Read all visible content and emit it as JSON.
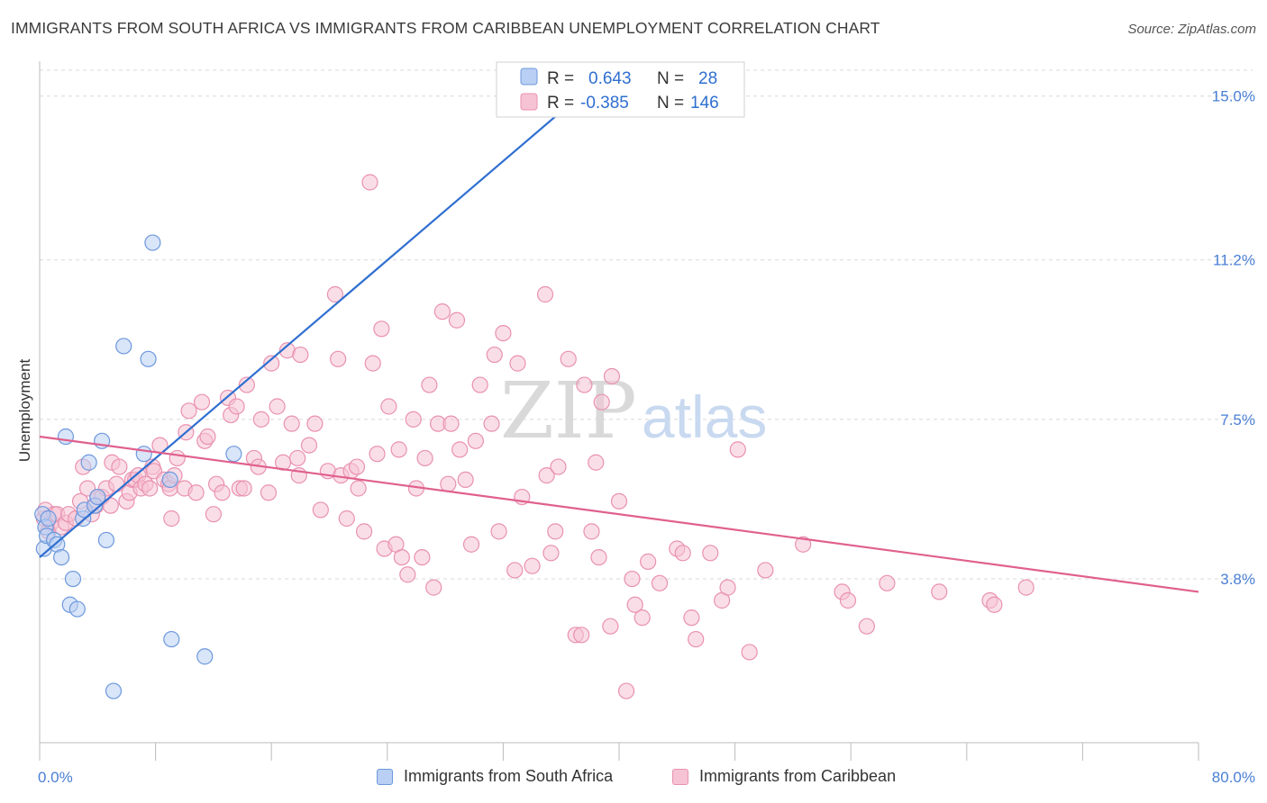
{
  "title": "IMMIGRANTS FROM SOUTH AFRICA VS IMMIGRANTS FROM CARIBBEAN UNEMPLOYMENT CORRELATION CHART",
  "source": "Source: ZipAtlas.com",
  "watermark": {
    "zip": "ZIP",
    "atlas": "atlas"
  },
  "colors": {
    "blue": "#2f6fd0",
    "blue_fill": "#b9cff3",
    "pink": "#e0608e",
    "pink_fill": "#f6c3d4",
    "grid": "#d8d8d8",
    "tick_text": "#4a7fd4"
  },
  "legend": {
    "rows": [
      {
        "r_label": "R =",
        "r_value": "0.643",
        "n_label": "N =",
        "n_value": "28"
      },
      {
        "r_label": "R =",
        "r_value": "-0.385",
        "n_label": "N =",
        "n_value": "146"
      }
    ]
  },
  "bottom_legend": [
    "Immigrants from South Africa",
    "Immigrants from Caribbean"
  ],
  "chart_data": {
    "type": "scatter",
    "title": "IMMIGRANTS FROM SOUTH AFRICA VS IMMIGRANTS FROM CARIBBEAN UNEMPLOYMENT CORRELATION CHART",
    "xlabel": "",
    "ylabel": "Unemployment",
    "xlim": [
      0,
      80
    ],
    "ylim": [
      0,
      15.6
    ],
    "x_tick_labels": [
      {
        "value": 0,
        "label": "0.0%"
      },
      {
        "value": 80,
        "label": "80.0%"
      }
    ],
    "y_tick_labels": [
      {
        "value": 3.8,
        "label": "3.8%"
      },
      {
        "value": 7.5,
        "label": "7.5%"
      },
      {
        "value": 11.2,
        "label": "11.2%"
      },
      {
        "value": 15.0,
        "label": "15.0%"
      }
    ],
    "grid": true,
    "series": [
      {
        "name": "Immigrants from South Africa",
        "color": "#2f6fd0",
        "r": 0.643,
        "n": 28,
        "trend": [
          [
            0,
            4.3
          ],
          [
            37.6,
            15.1
          ]
        ],
        "points": [
          [
            0.2,
            5.3
          ],
          [
            0.3,
            4.5
          ],
          [
            0.4,
            5.0
          ],
          [
            0.5,
            4.8
          ],
          [
            0.6,
            5.2
          ],
          [
            1.0,
            4.7
          ],
          [
            1.2,
            4.6
          ],
          [
            1.5,
            4.3
          ],
          [
            1.8,
            7.1
          ],
          [
            2.1,
            3.2
          ],
          [
            2.3,
            3.8
          ],
          [
            2.6,
            3.1
          ],
          [
            3.0,
            5.2
          ],
          [
            3.1,
            5.4
          ],
          [
            3.4,
            6.5
          ],
          [
            3.8,
            5.5
          ],
          [
            4.0,
            5.7
          ],
          [
            4.3,
            7.0
          ],
          [
            4.6,
            4.7
          ],
          [
            5.1,
            1.2
          ],
          [
            5.8,
            9.2
          ],
          [
            7.2,
            6.7
          ],
          [
            7.5,
            8.9
          ],
          [
            7.8,
            11.6
          ],
          [
            9.0,
            6.1
          ],
          [
            9.1,
            2.4
          ],
          [
            11.4,
            2.0
          ],
          [
            13.4,
            6.7
          ]
        ]
      },
      {
        "name": "Immigrants from Caribbean",
        "color": "#e0608e",
        "r": -0.385,
        "n": 146,
        "trend": [
          [
            0,
            7.1
          ],
          [
            80,
            3.5
          ]
        ],
        "points": [
          [
            0.3,
            5.2
          ],
          [
            0.4,
            5.4
          ],
          [
            0.6,
            4.9
          ],
          [
            0.8,
            5.1
          ],
          [
            1.0,
            5.3
          ],
          [
            1.2,
            5.3
          ],
          [
            1.5,
            5.0
          ],
          [
            1.8,
            5.1
          ],
          [
            2.0,
            5.3
          ],
          [
            2.5,
            5.2
          ],
          [
            2.8,
            5.6
          ],
          [
            3.0,
            6.4
          ],
          [
            3.3,
            5.9
          ],
          [
            3.6,
            5.3
          ],
          [
            3.9,
            5.5
          ],
          [
            4.0,
            5.7
          ],
          [
            4.3,
            5.7
          ],
          [
            4.6,
            5.9
          ],
          [
            4.9,
            5.5
          ],
          [
            5.0,
            6.5
          ],
          [
            5.3,
            6.0
          ],
          [
            5.5,
            6.4
          ],
          [
            6.0,
            5.6
          ],
          [
            6.2,
            5.8
          ],
          [
            6.4,
            6.1
          ],
          [
            6.6,
            6.1
          ],
          [
            6.8,
            6.2
          ],
          [
            7.0,
            5.9
          ],
          [
            7.3,
            6.0
          ],
          [
            7.6,
            5.9
          ],
          [
            7.8,
            6.4
          ],
          [
            7.9,
            6.3
          ],
          [
            8.3,
            6.9
          ],
          [
            8.6,
            6.1
          ],
          [
            8.9,
            6.0
          ],
          [
            9.0,
            5.9
          ],
          [
            9.3,
            6.2
          ],
          [
            9.5,
            6.6
          ],
          [
            9.1,
            5.2
          ],
          [
            10.0,
            5.9
          ],
          [
            10.1,
            7.2
          ],
          [
            10.3,
            7.7
          ],
          [
            10.8,
            5.8
          ],
          [
            11.2,
            7.9
          ],
          [
            11.4,
            7.0
          ],
          [
            11.6,
            7.1
          ],
          [
            12.0,
            5.3
          ],
          [
            12.2,
            6.0
          ],
          [
            12.6,
            5.8
          ],
          [
            13.0,
            8.0
          ],
          [
            13.2,
            7.6
          ],
          [
            13.6,
            7.8
          ],
          [
            13.8,
            5.9
          ],
          [
            14.1,
            5.9
          ],
          [
            14.3,
            8.3
          ],
          [
            14.8,
            6.6
          ],
          [
            15.1,
            6.4
          ],
          [
            15.3,
            7.5
          ],
          [
            15.8,
            5.8
          ],
          [
            16.0,
            8.8
          ],
          [
            16.4,
            7.8
          ],
          [
            16.8,
            6.5
          ],
          [
            17.1,
            9.1
          ],
          [
            17.4,
            7.4
          ],
          [
            17.8,
            6.6
          ],
          [
            17.9,
            6.2
          ],
          [
            18.0,
            9.0
          ],
          [
            18.6,
            6.9
          ],
          [
            19.0,
            7.4
          ],
          [
            19.4,
            5.4
          ],
          [
            19.9,
            6.3
          ],
          [
            20.4,
            10.4
          ],
          [
            20.6,
            8.9
          ],
          [
            20.8,
            6.2
          ],
          [
            21.2,
            5.2
          ],
          [
            21.5,
            6.3
          ],
          [
            21.9,
            6.4
          ],
          [
            22.0,
            5.9
          ],
          [
            22.4,
            4.9
          ],
          [
            22.8,
            13.0
          ],
          [
            23.0,
            8.8
          ],
          [
            23.3,
            6.7
          ],
          [
            23.6,
            9.6
          ],
          [
            23.8,
            4.5
          ],
          [
            24.1,
            7.8
          ],
          [
            24.6,
            4.6
          ],
          [
            24.8,
            6.8
          ],
          [
            25.0,
            4.3
          ],
          [
            25.4,
            3.9
          ],
          [
            25.8,
            7.5
          ],
          [
            26.0,
            5.9
          ],
          [
            26.4,
            4.3
          ],
          [
            26.6,
            6.6
          ],
          [
            26.9,
            8.3
          ],
          [
            27.2,
            3.6
          ],
          [
            27.5,
            7.4
          ],
          [
            27.8,
            10.0
          ],
          [
            28.2,
            6.0
          ],
          [
            28.4,
            7.4
          ],
          [
            28.8,
            9.8
          ],
          [
            29.0,
            6.8
          ],
          [
            29.4,
            6.1
          ],
          [
            29.8,
            4.6
          ],
          [
            30.1,
            7.0
          ],
          [
            30.4,
            8.3
          ],
          [
            31.2,
            7.4
          ],
          [
            31.4,
            9.0
          ],
          [
            31.7,
            4.9
          ],
          [
            32.0,
            9.5
          ],
          [
            32.8,
            4.0
          ],
          [
            33.0,
            8.8
          ],
          [
            33.3,
            5.7
          ],
          [
            34.0,
            4.1
          ],
          [
            34.9,
            10.4
          ],
          [
            35.0,
            6.2
          ],
          [
            35.3,
            4.4
          ],
          [
            35.6,
            4.9
          ],
          [
            35.8,
            6.4
          ],
          [
            36.5,
            8.9
          ],
          [
            37.0,
            2.5
          ],
          [
            37.4,
            2.5
          ],
          [
            37.6,
            8.3
          ],
          [
            38.1,
            4.9
          ],
          [
            38.4,
            6.5
          ],
          [
            38.6,
            4.3
          ],
          [
            38.8,
            7.9
          ],
          [
            39.4,
            2.7
          ],
          [
            39.5,
            8.5
          ],
          [
            40.0,
            5.6
          ],
          [
            40.5,
            1.2
          ],
          [
            40.9,
            3.8
          ],
          [
            41.1,
            3.2
          ],
          [
            41.6,
            2.9
          ],
          [
            42.0,
            4.2
          ],
          [
            42.8,
            3.7
          ],
          [
            44.0,
            4.5
          ],
          [
            44.4,
            4.4
          ],
          [
            45.0,
            2.9
          ],
          [
            45.3,
            2.4
          ],
          [
            46.3,
            4.4
          ],
          [
            47.1,
            3.3
          ],
          [
            47.5,
            3.6
          ],
          [
            48.2,
            6.8
          ],
          [
            49.0,
            2.1
          ],
          [
            50.1,
            4.0
          ],
          [
            52.7,
            4.6
          ],
          [
            55.4,
            3.5
          ],
          [
            55.8,
            3.3
          ],
          [
            57.1,
            2.7
          ],
          [
            58.5,
            3.7
          ],
          [
            62.1,
            3.5
          ],
          [
            65.6,
            3.3
          ],
          [
            65.9,
            3.2
          ],
          [
            68.1,
            3.6
          ]
        ]
      }
    ]
  }
}
